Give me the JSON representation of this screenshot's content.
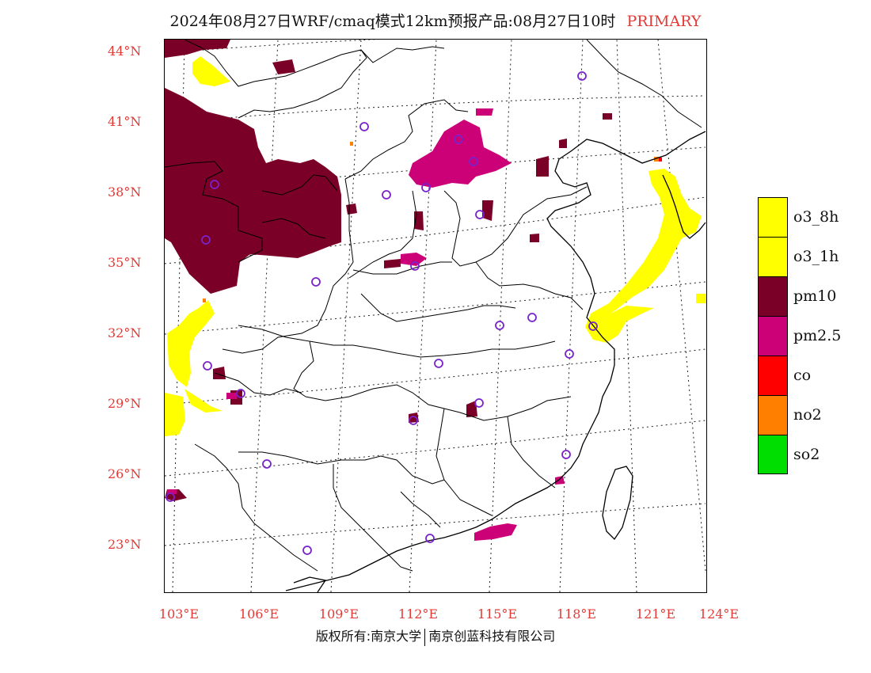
{
  "title": {
    "text": "2024年08月27日WRF/cmaq模式12km预报产品:08月27日10时",
    "tag": "PRIMARY",
    "tag_color": "#e53935"
  },
  "lat_labels": [
    "44°N",
    "41°N",
    "38°N",
    "35°N",
    "32°N",
    "29°N",
    "26°N",
    "23°N"
  ],
  "lon_labels": [
    "103°E",
    "106°E",
    "109°E",
    "112°E",
    "115°E",
    "118°E",
    "121°E",
    "124°E"
  ],
  "legend": [
    {
      "label": "o3_8h",
      "color": "#ffff00"
    },
    {
      "label": "o3_1h",
      "color": "#ffff00"
    },
    {
      "label": "pm10",
      "color": "#7b0028"
    },
    {
      "label": "pm2.5",
      "color": "#cc0077"
    },
    {
      "label": "co",
      "color": "#ff0000"
    },
    {
      "label": "no2",
      "color": "#ff8000"
    },
    {
      "label": "so2",
      "color": "#00dd00"
    }
  ],
  "footer": {
    "left": "版权所有:南京大学",
    "right": "南京创蓝科技有限公司"
  },
  "map": {
    "station_marker_color": "#7a22cc",
    "coast_color": "#000000",
    "boundary_color": "#000000"
  }
}
